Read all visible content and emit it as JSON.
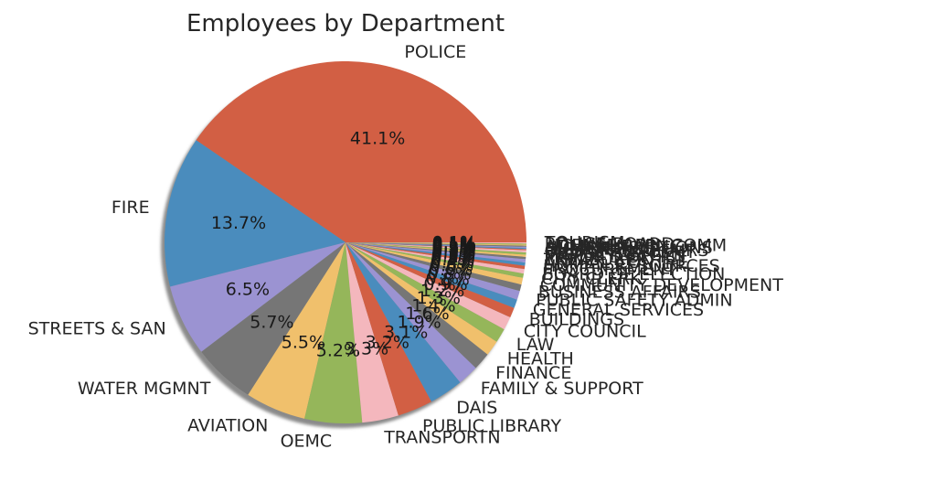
{
  "chart_data": {
    "type": "pie",
    "title": "Employees by Department",
    "start_angle_deg": 0,
    "direction": "counterclockwise",
    "shadow": true,
    "slices": [
      {
        "label": "POLICE",
        "value": 41.1,
        "pct_label": "41.1%",
        "color": "#d25f44"
      },
      {
        "label": "FIRE",
        "value": 13.7,
        "pct_label": "13.7%",
        "color": "#4a8cbd"
      },
      {
        "label": "STREETS & SAN",
        "value": 6.5,
        "pct_label": "6.5%",
        "color": "#9b93d2"
      },
      {
        "label": "WATER MGMNT",
        "value": 5.7,
        "pct_label": "5.7%",
        "color": "#767676"
      },
      {
        "label": "AVIATION",
        "value": 5.5,
        "pct_label": "5.5%",
        "color": "#f0c06c"
      },
      {
        "label": "OEMC",
        "value": 5.2,
        "pct_label": "5.2%",
        "color": "#95b65a"
      },
      {
        "label": "TRANSPORTN",
        "value": 3.3,
        "pct_label": "3.3%",
        "color": "#f4b7bd"
      },
      {
        "label": "PUBLIC LIBRARY",
        "value": 3.2,
        "pct_label": "3.2%",
        "color": "#d25f44"
      },
      {
        "label": "DAIS",
        "value": 3.1,
        "pct_label": "3.1%",
        "color": "#4a8cbd"
      },
      {
        "label": "FAMILY & SUPPORT",
        "value": 1.9,
        "pct_label": "1.9%",
        "color": "#9b93d2"
      },
      {
        "label": "FINANCE",
        "value": 1.6,
        "pct_label": "1.6%",
        "color": "#767676"
      },
      {
        "label": "HEALTH",
        "value": 1.4,
        "pct_label": "1.4%",
        "color": "#f0c06c"
      },
      {
        "label": "LAW",
        "value": 1.3,
        "pct_label": "1.3%",
        "color": "#95b65a"
      },
      {
        "label": "CITY COUNCIL",
        "value": 1.2,
        "pct_label": "1.2%",
        "color": "#f4b7bd"
      },
      {
        "label": "BUILDINGS",
        "value": 0.9,
        "pct_label": "0.9%",
        "color": "#d25f44"
      },
      {
        "label": "GENERAL SERVICES",
        "value": 0.8,
        "pct_label": "0.8%",
        "color": "#4a8cbd"
      },
      {
        "label": "PUBLIC SAFETY ADMIN",
        "value": 0.8,
        "pct_label": "0.8%",
        "color": "#9b93d2"
      },
      {
        "label": "BUSINESS AFFAIRS",
        "value": 0.6,
        "pct_label": "0.6%",
        "color": "#767676"
      },
      {
        "label": "COMMUNITY DEVELOPMENT",
        "value": 0.6,
        "pct_label": "0.6%",
        "color": "#f0c06c"
      },
      {
        "label": "CITY CLERK",
        "value": 0.4,
        "pct_label": "0.4%",
        "color": "#95b65a"
      },
      {
        "label": "BOARD OF ELECTION",
        "value": 0.4,
        "pct_label": "0.4%",
        "color": "#f4b7bd"
      },
      {
        "label": "PROCUREMENT",
        "value": 0.3,
        "pct_label": "0.3%",
        "color": "#d25f44"
      },
      {
        "label": "HUMAN RESOURCES",
        "value": 0.3,
        "pct_label": "0.3%",
        "color": "#4a8cbd"
      },
      {
        "label": "ANIMAL CONTRL",
        "value": 0.3,
        "pct_label": "0.3%",
        "color": "#9b93d2"
      },
      {
        "label": "TREASURER",
        "value": 0.2,
        "pct_label": "0.2%",
        "color": "#767676"
      },
      {
        "label": "MAYOR'S OFFICE",
        "value": 0.2,
        "pct_label": "0.2%",
        "color": "#f0c06c"
      },
      {
        "label": "INSPECTOR GEN",
        "value": 0.2,
        "pct_label": "0.2%",
        "color": "#95b65a"
      },
      {
        "label": "BUDGET & MGMT",
        "value": 0.2,
        "pct_label": "0.2%",
        "color": "#f4b7bd"
      },
      {
        "label": "CULTURAL AFFAIRS",
        "value": 0.1,
        "pct_label": "0.1%",
        "color": "#d25f44"
      },
      {
        "label": "DISABILITIES",
        "value": 0.1,
        "pct_label": "0.1%",
        "color": "#4a8cbd"
      },
      {
        "label": "HUMAN RELATIONS",
        "value": 0.1,
        "pct_label": "0.1%",
        "color": "#9b93d2"
      },
      {
        "label": "ADMIN HEARNG",
        "value": 0.1,
        "pct_label": "0.1%",
        "color": "#767676"
      },
      {
        "label": "LICENSE APPL COMM",
        "value": 0.1,
        "pct_label": "0.1%",
        "color": "#f0c06c"
      },
      {
        "label": "POLICE BOARD",
        "value": 0.1,
        "pct_label": "0.1%",
        "color": "#95b65a"
      },
      {
        "label": "TOURISM",
        "value": 0.1,
        "pct_label": "0.1%",
        "color": "#f4b7bd"
      }
    ]
  }
}
